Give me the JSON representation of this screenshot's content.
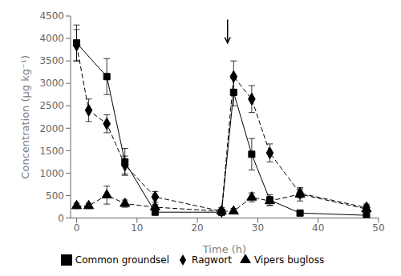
{
  "chart_data": {
    "type": "line",
    "xlabel": "Time (h)",
    "ylabel": "Concentration (μg kg⁻¹)",
    "xlim": [
      -1,
      50
    ],
    "xticks": [
      0,
      10,
      20,
      30,
      40,
      50
    ],
    "ylim": [
      0,
      4500
    ],
    "yticks": [
      0,
      500,
      1000,
      1500,
      2000,
      2500,
      3000,
      3500,
      4000,
      4500
    ],
    "grid": false,
    "legend": "bottom",
    "color": "#000000",
    "series": [
      {
        "name": "Ragwort",
        "marker": "diamond",
        "line_style": "dashed",
        "x": [
          0,
          2,
          5,
          8,
          13,
          24,
          26,
          29,
          32,
          37,
          48
        ],
        "values": [
          3850,
          2400,
          2100,
          1180,
          470,
          150,
          3150,
          2650,
          1450,
          550,
          230
        ],
        "yerr": [
          350,
          250,
          200,
          200,
          120,
          80,
          350,
          300,
          200,
          100,
          80
        ]
      },
      {
        "name": "Common groundsel",
        "marker": "square",
        "line_style": "solid",
        "x": [
          0,
          5,
          8,
          13,
          24,
          26,
          29,
          32,
          37,
          48
        ],
        "values": [
          3900,
          3150,
          1250,
          130,
          130,
          2800,
          1420,
          400,
          110,
          60
        ],
        "yerr": [
          400,
          400,
          300,
          60,
          60,
          300,
          350,
          120,
          50,
          30
        ]
      },
      {
        "name": "Vipers bugloss",
        "marker": "triangle",
        "line_style": "dashed",
        "x": [
          0,
          2,
          5,
          8,
          13,
          24,
          26,
          29,
          32,
          37,
          48
        ],
        "values": [
          270,
          270,
          510,
          320,
          240,
          150,
          150,
          460,
          380,
          530,
          200
        ],
        "yerr": [
          60,
          60,
          200,
          80,
          60,
          40,
          60,
          100,
          100,
          150,
          80
        ]
      }
    ],
    "annotations": [
      {
        "type": "arrow",
        "x": 25,
        "y_from": 4420,
        "y_to": 3900
      }
    ]
  }
}
